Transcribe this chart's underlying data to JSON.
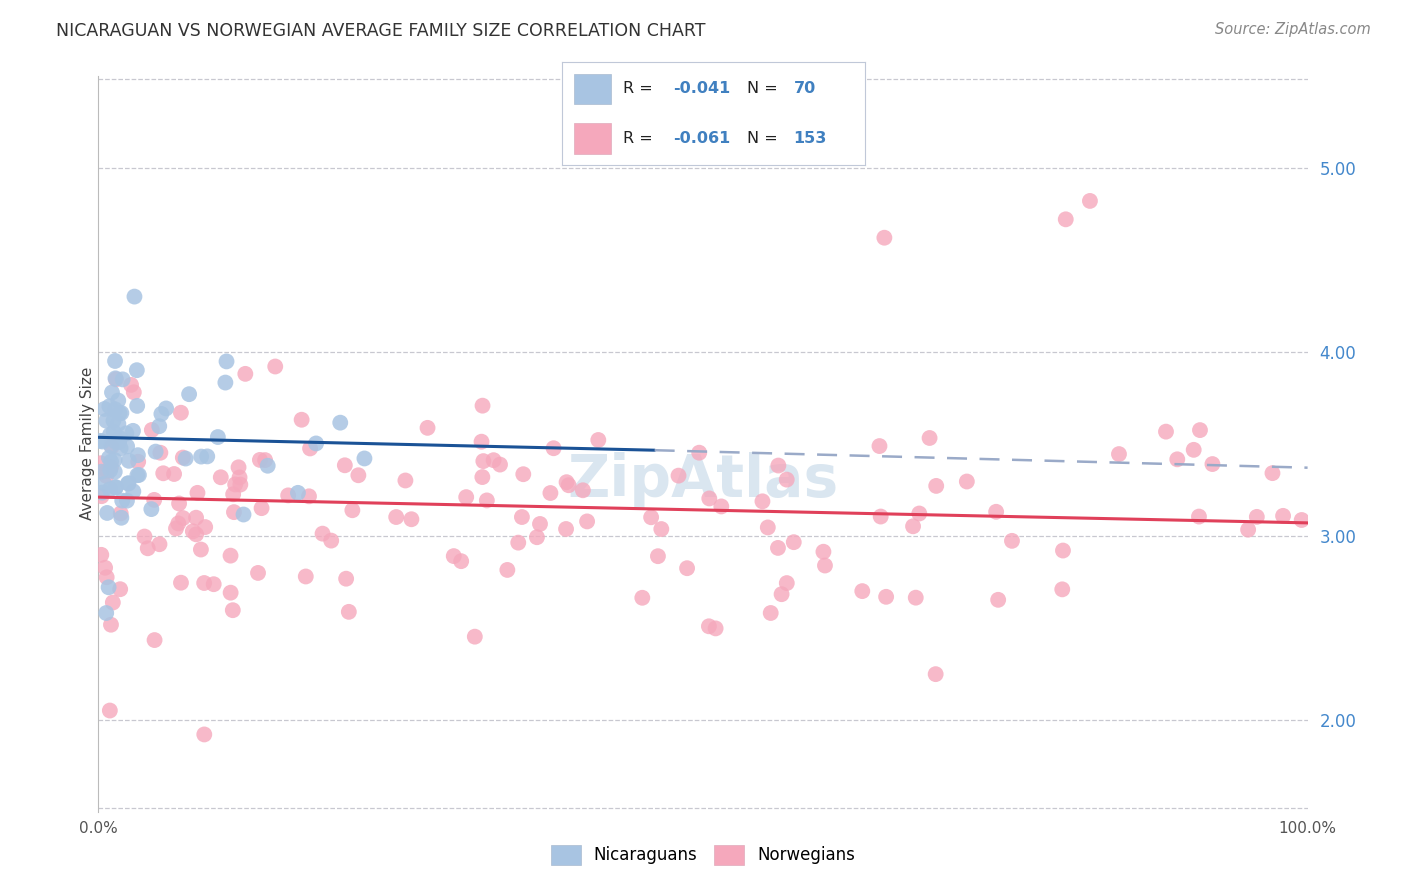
{
  "title": "NICARAGUAN VS NORWEGIAN AVERAGE FAMILY SIZE CORRELATION CHART",
  "source": "Source: ZipAtlas.com",
  "ylabel": "Average Family Size",
  "color_nicaraguan": "#a8c4e2",
  "color_norwegian": "#f5a8bc",
  "color_blue_line": "#1a5296",
  "color_pink_line": "#e0405a",
  "color_dashed_line": "#9aaac8",
  "color_legend_text_rn": "#4080c0",
  "color_right_axis": "#4488cc",
  "background_color": "#ffffff",
  "grid_color": "#c8c8d0",
  "watermark_color": "#dae6f0",
  "ylim_bottom": 1.5,
  "ylim_top": 5.5,
  "xlim_left": 0.0,
  "xlim_right": 100.0,
  "nic_trend_x0": 0.0,
  "nic_trend_x1": 46.0,
  "nic_trend_y0": 3.535,
  "nic_trend_y1": 3.465,
  "dash_trend_x0": 46.0,
  "dash_trend_x1": 100.0,
  "dash_trend_y0": 3.465,
  "dash_trend_y1": 3.37,
  "nor_trend_x0": 0.0,
  "nor_trend_x1": 100.0,
  "nor_trend_y0": 3.21,
  "nor_trend_y1": 3.07,
  "grid_yticks": [
    2.0,
    3.0,
    4.0,
    5.0
  ],
  "legend_r1": "-0.041",
  "legend_n1": "70",
  "legend_r2": "-0.061",
  "legend_n2": "153"
}
